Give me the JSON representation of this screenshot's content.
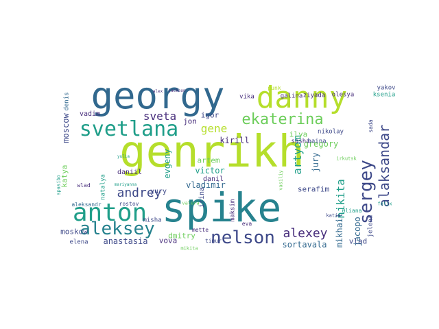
{
  "palette": {
    "background": "#ffffff",
    "lime": "#b5de2b",
    "green": "#6ccd5a",
    "teal": "#1f9e89",
    "blue": "#26828e",
    "slate": "#31688e",
    "indigo": "#3e4989",
    "navy": "#472d7b",
    "purple": "#440154"
  },
  "words": [
    {
      "id": "genrikh",
      "text": "genrikh",
      "size": 64,
      "color": "lime",
      "rotate": false
    },
    {
      "id": "spike",
      "text": "spike",
      "size": 58,
      "color": "blue",
      "rotate": false
    },
    {
      "id": "georgy",
      "text": "georgy",
      "size": 54,
      "color": "slate",
      "rotate": false
    },
    {
      "id": "danny",
      "text": "danny",
      "size": 44,
      "color": "lime",
      "rotate": false
    },
    {
      "id": "svetlana",
      "text": "svetlana",
      "size": 30,
      "color": "teal",
      "rotate": false
    },
    {
      "id": "anton",
      "text": "anton",
      "size": 36,
      "color": "teal",
      "rotate": false
    },
    {
      "id": "aleksey",
      "text": "aleksey",
      "size": 26,
      "color": "blue",
      "rotate": false
    },
    {
      "id": "nelson",
      "text": "nelson",
      "size": 26,
      "color": "indigo",
      "rotate": false
    },
    {
      "id": "ekaterina",
      "text": "ekaterina",
      "size": 22,
      "color": "green",
      "rotate": false
    },
    {
      "id": "sergey",
      "text": "sergey",
      "size": 26,
      "color": "indigo",
      "rotate": true
    },
    {
      "id": "alaksandar",
      "text": "alaksandar",
      "size": 20,
      "color": "indigo",
      "rotate": true
    },
    {
      "id": "alexey",
      "text": "alexey",
      "size": 18,
      "color": "navy",
      "rotate": false
    },
    {
      "id": "andrey",
      "text": "andrey",
      "size": 18,
      "color": "indigo",
      "rotate": false
    },
    {
      "id": "sveta",
      "text": "sveta",
      "size": 16,
      "color": "navy",
      "rotate": false
    },
    {
      "id": "gene",
      "text": "gene",
      "size": 16,
      "color": "lime",
      "rotate": false
    },
    {
      "id": "nikita",
      "text": "nikita",
      "size": 16,
      "color": "teal",
      "rotate": true
    },
    {
      "id": "artyom",
      "text": "artyom",
      "size": 16,
      "color": "teal",
      "rotate": true
    },
    {
      "id": "anastasia",
      "text": "anastasia",
      "size": 12,
      "color": "indigo",
      "rotate": false
    },
    {
      "id": "gregory",
      "text": "gregory",
      "size": 12,
      "color": "green",
      "rotate": false
    },
    {
      "id": "sortavala",
      "text": "sortavala",
      "size": 12,
      "color": "slate",
      "rotate": false
    },
    {
      "id": "kirill",
      "text": "kirill",
      "size": 12,
      "color": "navy",
      "rotate": false
    },
    {
      "id": "vladimir",
      "text": "vladimir",
      "size": 12,
      "color": "slate",
      "rotate": false
    },
    {
      "id": "victor",
      "text": "victor",
      "size": 12,
      "color": "teal",
      "rotate": false
    },
    {
      "id": "serafim",
      "text": "serafim",
      "size": 11,
      "color": "indigo",
      "rotate": false
    },
    {
      "id": "jacopo",
      "text": "jacopo",
      "size": 12,
      "color": "slate",
      "rotate": true
    },
    {
      "id": "evgeny",
      "text": "evgeny",
      "size": 12,
      "color": "teal",
      "rotate": true
    },
    {
      "id": "mikhail",
      "text": "mikhail",
      "size": 12,
      "color": "slate",
      "rotate": true
    },
    {
      "id": "jury",
      "text": "jury",
      "size": 12,
      "color": "slate",
      "rotate": true
    },
    {
      "id": "moscow",
      "text": "moscow",
      "size": 12,
      "color": "indigo",
      "rotate": true
    },
    {
      "id": "moskow",
      "text": "moskow",
      "size": 11,
      "color": "indigo",
      "rotate": false
    },
    {
      "id": "igor",
      "text": "igor",
      "size": 11,
      "color": "indigo",
      "rotate": false
    },
    {
      "id": "jon",
      "text": "jon",
      "size": 11,
      "color": "navy",
      "rotate": false
    },
    {
      "id": "vadim",
      "text": "vadim",
      "size": 10,
      "color": "navy",
      "rotate": false
    },
    {
      "id": "artem",
      "text": "artem",
      "size": 11,
      "color": "green",
      "rotate": false
    },
    {
      "id": "dmitry",
      "text": "dmitry",
      "size": 11,
      "color": "green",
      "rotate": false
    },
    {
      "id": "vova",
      "text": "vova",
      "size": 11,
      "color": "navy",
      "rotate": false
    },
    {
      "id": "vlad",
      "text": "vlad",
      "size": 11,
      "color": "indigo",
      "rotate": false
    },
    {
      "id": "ilya",
      "text": "ilya",
      "size": 11,
      "color": "green",
      "rotate": false
    },
    {
      "id": "katya",
      "text": "katya",
      "size": 11,
      "color": "green",
      "rotate": true
    },
    {
      "id": "danil",
      "text": "danil",
      "size": 10,
      "color": "navy",
      "rotate": false
    },
    {
      "id": "daniil",
      "text": "daniil",
      "size": 10,
      "color": "navy",
      "rotate": false
    },
    {
      "id": "irina",
      "text": "irina",
      "size": 10,
      "color": "indigo",
      "rotate": true
    },
    {
      "id": "yury",
      "text": "yury",
      "size": 10,
      "color": "indigo",
      "rotate": false
    },
    {
      "id": "misha",
      "text": "misha",
      "size": 9,
      "color": "indigo",
      "rotate": false
    },
    {
      "id": "elena",
      "text": "elena",
      "size": 9,
      "color": "indigo",
      "rotate": false
    },
    {
      "id": "jelena",
      "text": "jelena",
      "size": 9,
      "color": "indigo",
      "rotate": true
    },
    {
      "id": "maksim",
      "text": "maksim",
      "size": 9,
      "color": "navy",
      "rotate": true
    },
    {
      "id": "galina",
      "text": "galina",
      "size": 9,
      "color": "navy",
      "rotate": false
    },
    {
      "id": "ziyada",
      "text": "ziyada",
      "size": 9,
      "color": "navy",
      "rotate": false
    },
    {
      "id": "olesya",
      "text": "olesya",
      "size": 9,
      "color": "navy",
      "rotate": false
    },
    {
      "id": "vika",
      "text": "vika",
      "size": 9,
      "color": "navy",
      "rotate": false
    },
    {
      "id": "nikolay",
      "text": "nikolay",
      "size": 9,
      "color": "indigo",
      "rotate": false
    },
    {
      "id": "ksenia",
      "text": "ksenia",
      "size": 9,
      "color": "teal",
      "rotate": false
    },
    {
      "id": "yakov",
      "text": "yakov",
      "size": 9,
      "color": "indigo",
      "rotate": false
    },
    {
      "id": "sada",
      "text": "sada",
      "size": 8,
      "color": "indigo",
      "rotate": true
    },
    {
      "id": "sasha",
      "text": "sasha",
      "size": 9,
      "color": "navy",
      "rotate": false
    },
    {
      "id": "baina",
      "text": "baina",
      "size": 9,
      "color": "indigo",
      "rotate": false
    },
    {
      "id": "punk",
      "text": "punk",
      "size": 8,
      "color": "lime",
      "rotate": false
    },
    {
      "id": "denis",
      "text": "denis",
      "size": 9,
      "color": "slate",
      "rotate": true
    },
    {
      "id": "natalya",
      "text": "natalya",
      "size": 9,
      "color": "teal",
      "rotate": true
    },
    {
      "id": "uliana",
      "text": "uliana",
      "size": 8,
      "color": "teal",
      "rotate": false
    },
    {
      "id": "rostov",
      "text": "rostov",
      "size": 8,
      "color": "indigo",
      "rotate": false
    },
    {
      "id": "aleksandr",
      "text": "aleksandr",
      "size": 8,
      "color": "slate",
      "rotate": false
    },
    {
      "id": "wlad",
      "text": "wlad",
      "size": 8,
      "color": "navy",
      "rotate": false
    },
    {
      "id": "timur",
      "text": "timur",
      "size": 8,
      "color": "indigo",
      "rotate": false
    },
    {
      "id": "mette",
      "text": "mette",
      "size": 8,
      "color": "navy",
      "rotate": false
    },
    {
      "id": "eva",
      "text": "eva",
      "size": 8,
      "color": "navy",
      "rotate": false
    },
    {
      "id": "katia",
      "text": "katia",
      "size": 7,
      "color": "indigo",
      "rotate": false
    },
    {
      "id": "valera",
      "text": "valera",
      "size": 7,
      "color": "green",
      "rotate": false
    },
    {
      "id": "felix",
      "text": "felix",
      "size": 7,
      "color": "teal",
      "rotate": false
    },
    {
      "id": "irkutsk",
      "text": "irkutsk",
      "size": 7,
      "color": "green",
      "rotate": false
    },
    {
      "id": "vasiliy",
      "text": "vasiliy",
      "size": 7,
      "color": "green",
      "rotate": true
    },
    {
      "id": "spasibo",
      "text": "spasibo",
      "size": 7,
      "color": "teal",
      "rotate": true
    },
    {
      "id": "mikita",
      "text": "mikita",
      "size": 7,
      "color": "green",
      "rotate": false
    },
    {
      "id": "mariyanna",
      "text": "mariyanna",
      "size": 6,
      "color": "teal",
      "rotate": false
    },
    {
      "id": "jackson",
      "text": "jackson",
      "size": 6,
      "color": "navy",
      "rotate": false
    },
    {
      "id": "alex",
      "text": "alex",
      "size": 6,
      "color": "navy",
      "rotate": false
    },
    {
      "id": "yulia",
      "text": "yulia",
      "size": 6,
      "color": "teal",
      "rotate": false
    }
  ]
}
